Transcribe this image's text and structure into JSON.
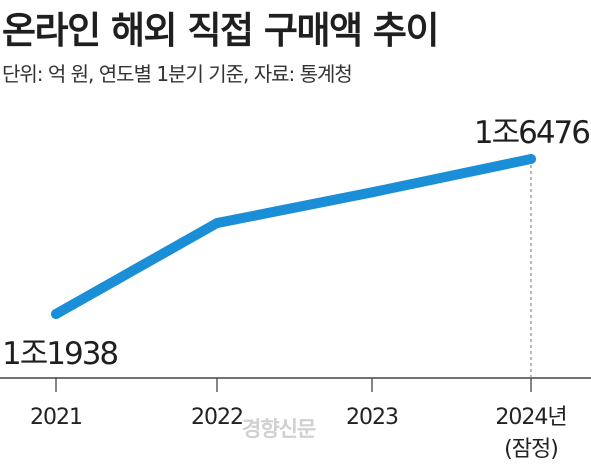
{
  "chart_data": {
    "type": "line",
    "title": "온라인 해외 직접 구매액 추이",
    "subtitle": "단위: 억 원, 연도별 1분기 기준, 자료: 통계청",
    "categories": [
      "2021",
      "2022",
      "2023",
      "2024년"
    ],
    "category_sublabels": [
      "",
      "",
      "",
      "(잠정)"
    ],
    "values": [
      11938,
      14600,
      15500,
      16476
    ],
    "ylim": [
      10000,
      17500
    ],
    "data_labels": [
      {
        "index": 0,
        "text": "1조1938"
      },
      {
        "index": 3,
        "text": "1조6476"
      }
    ],
    "line_color": "#1a8fd8",
    "axis_color": "#444444",
    "guide_color": "#888888",
    "grid": false
  },
  "watermark": "경향신문"
}
